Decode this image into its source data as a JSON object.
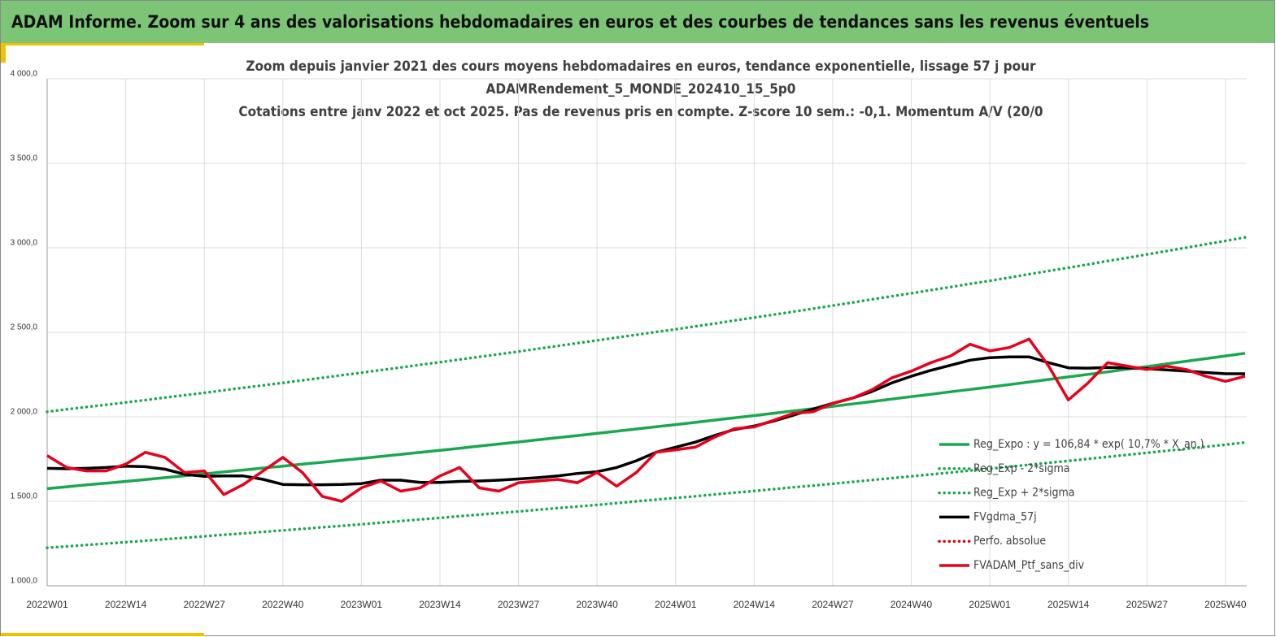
{
  "header": {
    "title": "ADAM Informe. Zoom sur 4 ans des valorisations hebdomadaires en euros et des courbes de tendances sans les revenus éventuels"
  },
  "chart_data": {
    "type": "line",
    "title": [
      "Zoom depuis janvier 2021 des cours moyens hebdomadaires  en euros, tendance exponentielle, lissage 57 j pour",
      "ADAMRendement_5_MONDE_202410_15_5p0",
      "Cotations  entre janv 2022 et oct 2025. Pas de revenus pris en compte. Z-score 10 sem.: -0,1. Momentum A/V (20/0"
    ],
    "categories": [
      "2022W01",
      null,
      null,
      null,
      "2022W14",
      null,
      null,
      null,
      "2022W27",
      null,
      null,
      null,
      "2022W40",
      null,
      null,
      null,
      "2023W01",
      null,
      null,
      null,
      "2023W14",
      null,
      null,
      null,
      "2023W27",
      null,
      null,
      null,
      "2023W40",
      null,
      null,
      null,
      "2024W01",
      null,
      null,
      null,
      "2024W14",
      null,
      null,
      null,
      "2024W27",
      null,
      null,
      null,
      "2024W40",
      null,
      null,
      null,
      "2025W01",
      null,
      null,
      null,
      "2025W14",
      null,
      null,
      null,
      "2025W27",
      null,
      null,
      null,
      "2025W40",
      null
    ],
    "ylim": [
      1000,
      4000
    ],
    "yticks": [
      {
        "value": 1000,
        "label": "1 000,0"
      },
      {
        "value": 1500,
        "label": "1 500,0"
      },
      {
        "value": 2000,
        "label": "2 000,0"
      },
      {
        "value": 2500,
        "label": "2 500,0"
      },
      {
        "value": 3000,
        "label": "3 000,0"
      },
      {
        "value": 3500,
        "label": "3 500,0"
      },
      {
        "value": 4000,
        "label": "4 000,0"
      }
    ],
    "grid": true,
    "legend": "bottom-right",
    "series": [
      {
        "name": "Reg_Expo : y = 106,84 * exp( 10,7% * X_an )",
        "color": "#1aa84f",
        "style": "solid",
        "values": [
          1575,
          1586,
          1597,
          1607,
          1618,
          1629,
          1640,
          1651,
          1662,
          1674,
          1685,
          1697,
          1708,
          1720,
          1731,
          1743,
          1754,
          1766,
          1778,
          1790,
          1802,
          1814,
          1827,
          1839,
          1851,
          1864,
          1877,
          1889,
          1902,
          1915,
          1928,
          1941,
          1954,
          1967,
          1981,
          1994,
          2007,
          2021,
          2035,
          2048,
          2062,
          2076,
          2090,
          2105,
          2119,
          2133,
          2148,
          2162,
          2176,
          2191,
          2206,
          2221,
          2236,
          2251,
          2266,
          2282,
          2297,
          2313,
          2329,
          2344,
          2360,
          2376
        ]
      },
      {
        "name": "Reg_Exp - 2*sigma",
        "color": "#1aa84f",
        "style": "dotted",
        "values": [
          1225,
          1233,
          1242,
          1250,
          1258,
          1267,
          1276,
          1284,
          1293,
          1302,
          1310,
          1319,
          1328,
          1337,
          1346,
          1355,
          1364,
          1374,
          1383,
          1393,
          1402,
          1412,
          1421,
          1431,
          1440,
          1450,
          1460,
          1469,
          1479,
          1489,
          1500,
          1510,
          1520,
          1530,
          1541,
          1551,
          1561,
          1572,
          1583,
          1593,
          1604,
          1615,
          1626,
          1637,
          1648,
          1659,
          1670,
          1682,
          1693,
          1705,
          1716,
          1728,
          1739,
          1751,
          1763,
          1775,
          1787,
          1799,
          1811,
          1823,
          1835,
          1848
        ]
      },
      {
        "name": "Reg_Exp + 2*sigma",
        "color": "#1aa84f",
        "style": "dotted",
        "values": [
          2030,
          2044,
          2058,
          2071,
          2085,
          2099,
          2114,
          2128,
          2142,
          2157,
          2172,
          2186,
          2201,
          2216,
          2231,
          2246,
          2261,
          2277,
          2292,
          2308,
          2323,
          2339,
          2355,
          2370,
          2386,
          2403,
          2419,
          2436,
          2452,
          2469,
          2485,
          2502,
          2518,
          2535,
          2552,
          2570,
          2587,
          2605,
          2622,
          2640,
          2658,
          2676,
          2695,
          2713,
          2731,
          2750,
          2768,
          2787,
          2805,
          2824,
          2844,
          2863,
          2882,
          2902,
          2922,
          2941,
          2961,
          2981,
          3001,
          3021,
          3041,
          3062
        ]
      },
      {
        "name": "FVgdma_57j",
        "color": "#000000",
        "style": "solid",
        "values": [
          1695,
          1693,
          1695,
          1700,
          1708,
          1705,
          1690,
          1660,
          1648,
          1650,
          1650,
          1630,
          1600,
          1598,
          1598,
          1600,
          1605,
          1625,
          1625,
          1612,
          1612,
          1618,
          1620,
          1625,
          1632,
          1640,
          1650,
          1665,
          1675,
          1700,
          1740,
          1790,
          1820,
          1850,
          1890,
          1925,
          1945,
          1975,
          2010,
          2045,
          2080,
          2110,
          2150,
          2200,
          2240,
          2275,
          2305,
          2335,
          2350,
          2355,
          2355,
          2320,
          2290,
          2288,
          2292,
          2290,
          2285,
          2278,
          2270,
          2262,
          2255,
          2255
        ]
      },
      {
        "name": "Perfo. absolue",
        "color": "#e00000",
        "style": "dotted",
        "values": [
          null,
          null,
          null,
          null,
          null,
          null,
          null,
          null,
          null,
          null,
          null,
          null,
          null,
          null,
          null,
          null,
          null,
          null,
          null,
          null,
          null,
          null,
          null,
          null,
          null,
          null,
          null,
          null,
          null,
          null,
          null,
          null,
          null,
          null,
          null,
          null,
          null,
          null,
          null,
          null,
          null,
          null,
          null,
          null,
          null,
          null,
          null,
          null,
          null,
          null,
          null,
          null,
          null,
          null,
          null,
          null,
          null,
          null,
          null,
          null,
          null,
          null
        ]
      },
      {
        "name": "FVADAM_Ptf_sans_div",
        "color": "#e8001c",
        "style": "solid",
        "values": [
          1770,
          1700,
          1680,
          1680,
          1720,
          1790,
          1760,
          1670,
          1680,
          1540,
          1600,
          1680,
          1760,
          1670,
          1530,
          1500,
          1580,
          1620,
          1560,
          1580,
          1650,
          1700,
          1580,
          1560,
          1610,
          1620,
          1630,
          1610,
          1670,
          1590,
          1670,
          1790,
          1805,
          1820,
          1880,
          1930,
          1940,
          1980,
          2020,
          2030,
          2080,
          2110,
          2160,
          2230,
          2270,
          2320,
          2360,
          2430,
          2390,
          2410,
          2460,
          2300,
          2100,
          2200,
          2320,
          2300,
          2280,
          2300,
          2280,
          2240,
          2210,
          2240
        ]
      }
    ]
  }
}
